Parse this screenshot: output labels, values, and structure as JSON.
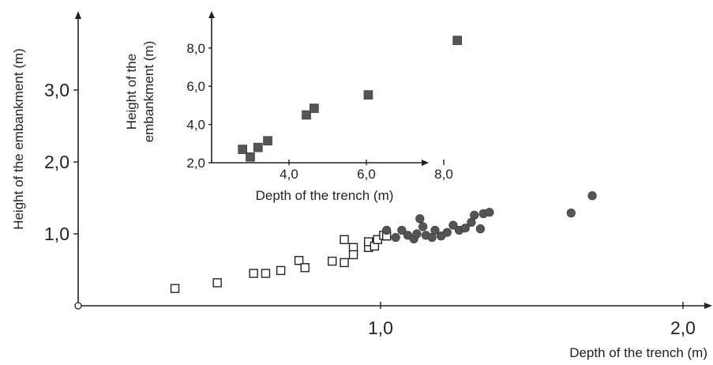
{
  "chart_data": [
    {
      "type": "scatter",
      "title": "",
      "xlabel": "Depth of the trench (m)",
      "ylabel": "Height of the embankment (m)",
      "xlim": [
        0,
        2.05
      ],
      "ylim": [
        0,
        3.0
      ],
      "x_ticks": [
        "1,0",
        "2,0"
      ],
      "x_tick_values": [
        1.0,
        2.0
      ],
      "y_ticks": [
        "1,0",
        "2,0",
        "3,0"
      ],
      "y_tick_values": [
        1.0,
        2.0,
        3.0
      ],
      "grid": false,
      "legend": "none",
      "series": [
        {
          "marker": "open-square",
          "color": "#222222",
          "points": [
            [
              0.32,
              0.24
            ],
            [
              0.46,
              0.32
            ],
            [
              0.58,
              0.45
            ],
            [
              0.62,
              0.45
            ],
            [
              0.67,
              0.49
            ],
            [
              0.73,
              0.63
            ],
            [
              0.75,
              0.53
            ],
            [
              0.84,
              0.62
            ],
            [
              0.88,
              0.6
            ],
            [
              0.88,
              0.92
            ],
            [
              0.91,
              0.81
            ],
            [
              0.91,
              0.71
            ],
            [
              0.96,
              0.81
            ],
            [
              0.96,
              0.89
            ],
            [
              0.98,
              0.83
            ],
            [
              0.99,
              0.92
            ],
            [
              1.01,
              0.98
            ],
            [
              1.02,
              0.97
            ]
          ]
        },
        {
          "marker": "filled-circle",
          "color": "#555555",
          "points": [
            [
              1.02,
              1.05
            ],
            [
              1.05,
              0.95
            ],
            [
              1.07,
              1.05
            ],
            [
              1.09,
              0.98
            ],
            [
              1.11,
              0.93
            ],
            [
              1.12,
              1.0
            ],
            [
              1.13,
              1.21
            ],
            [
              1.14,
              1.1
            ],
            [
              1.15,
              0.98
            ],
            [
              1.17,
              0.95
            ],
            [
              1.18,
              1.05
            ],
            [
              1.2,
              0.97
            ],
            [
              1.22,
              1.02
            ],
            [
              1.24,
              1.12
            ],
            [
              1.26,
              1.05
            ],
            [
              1.28,
              1.08
            ],
            [
              1.3,
              1.16
            ],
            [
              1.31,
              1.26
            ],
            [
              1.33,
              1.07
            ],
            [
              1.34,
              1.28
            ],
            [
              1.36,
              1.3
            ],
            [
              1.63,
              1.29
            ],
            [
              1.7,
              1.53
            ]
          ]
        }
      ]
    },
    {
      "type": "scatter",
      "title": "",
      "xlabel": "Depth of the trench (m)",
      "ylabel_lines": [
        "Height of the",
        "embankment (m)"
      ],
      "xlim": [
        2.0,
        10.0
      ],
      "ylim": [
        2.0,
        10.0
      ],
      "x_ticks": [
        "4,0",
        "6,0",
        "8,0"
      ],
      "x_tick_values": [
        4.0,
        6.0,
        8.0
      ],
      "y_ticks": [
        "2,0",
        "4,0",
        "6,0",
        "8,0"
      ],
      "y_tick_values": [
        2.0,
        4.0,
        6.0,
        8.0
      ],
      "grid": false,
      "legend": "none",
      "series": [
        {
          "marker": "filled-square",
          "color": "#555555",
          "points": [
            [
              2.8,
              2.7
            ],
            [
              3.0,
              2.3
            ],
            [
              3.2,
              2.8
            ],
            [
              3.45,
              3.15
            ],
            [
              4.45,
              4.5
            ],
            [
              4.65,
              4.85
            ],
            [
              6.05,
              5.55
            ],
            [
              8.35,
              8.4
            ]
          ]
        }
      ]
    }
  ]
}
